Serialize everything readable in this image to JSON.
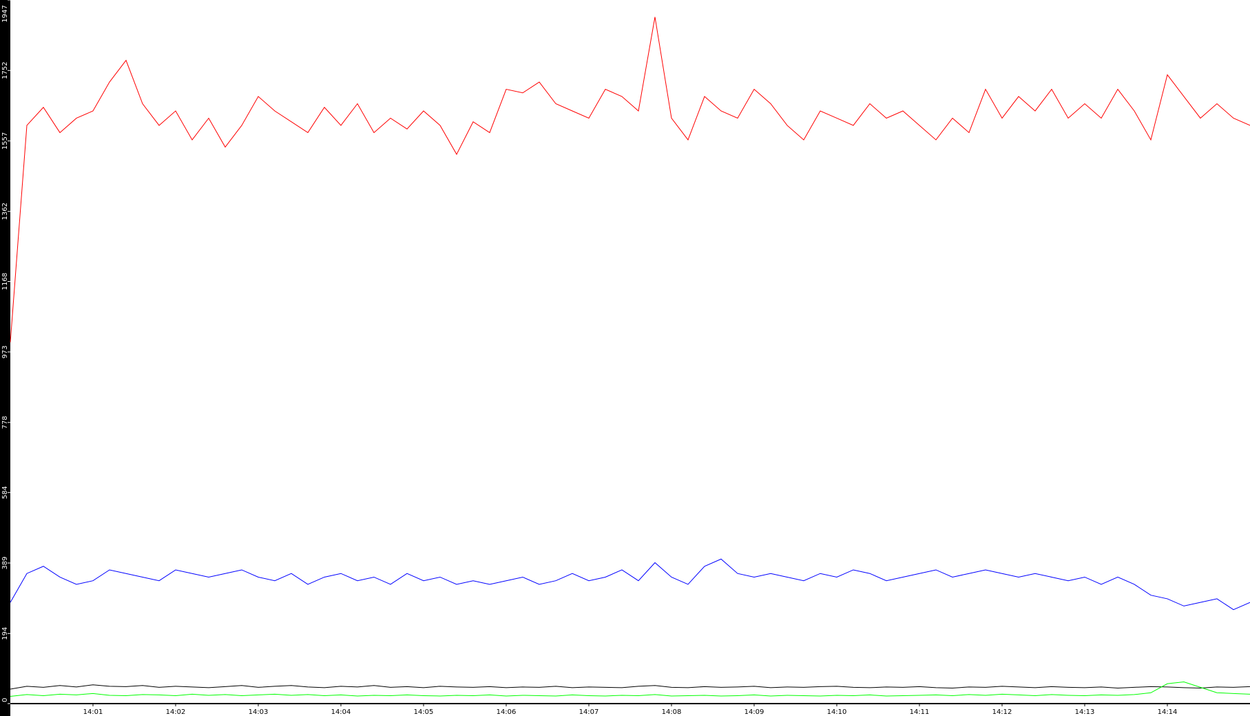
{
  "chart_data": {
    "type": "line",
    "x": [
      0,
      0.2,
      0.4,
      0.6,
      0.8,
      1,
      1.2,
      1.4,
      1.6,
      1.8,
      2,
      2.2,
      2.4,
      2.6,
      2.8,
      3,
      3.2,
      3.4,
      3.6,
      3.8,
      4,
      4.2,
      4.4,
      4.6,
      4.8,
      5,
      5.2,
      5.4,
      5.6,
      5.8,
      6,
      6.2,
      6.4,
      6.6,
      6.8,
      7,
      7.2,
      7.4,
      7.6,
      7.8,
      8,
      8.2,
      8.4,
      8.6,
      8.8,
      9,
      9.2,
      9.4,
      9.6,
      9.8,
      10,
      10.2,
      10.4,
      10.6,
      10.8,
      11,
      11.2,
      11.4,
      11.6,
      11.8,
      12,
      12.2,
      12.4,
      12.6,
      12.8,
      13,
      13.2,
      13.4,
      13.6,
      13.8,
      14,
      14.2,
      14.4,
      14.6,
      14.8,
      15
    ],
    "series": [
      {
        "color": "#ff0000",
        "values": [
          1000,
          1600,
          1650,
          1580,
          1620,
          1640,
          1720,
          1780,
          1660,
          1600,
          1640,
          1560,
          1620,
          1540,
          1600,
          1680,
          1640,
          1610,
          1580,
          1650,
          1600,
          1660,
          1580,
          1620,
          1590,
          1640,
          1600,
          1520,
          1610,
          1580,
          1700,
          1690,
          1720,
          1660,
          1640,
          1620,
          1700,
          1680,
          1640,
          1900,
          1620,
          1560,
          1680,
          1640,
          1620,
          1700,
          1660,
          1600,
          1560,
          1640,
          1620,
          1600,
          1660,
          1620,
          1640,
          1600,
          1560,
          1620,
          1580,
          1700,
          1620,
          1680,
          1640,
          1700,
          1620,
          1660,
          1620,
          1700,
          1640,
          1560,
          1740,
          1680,
          1620,
          1660,
          1620,
          1600
        ]
      },
      {
        "color": "#0000ff",
        "values": [
          280,
          360,
          380,
          350,
          330,
          340,
          370,
          360,
          350,
          340,
          370,
          360,
          350,
          360,
          370,
          350,
          340,
          360,
          330,
          350,
          360,
          340,
          350,
          330,
          360,
          340,
          350,
          330,
          340,
          330,
          340,
          350,
          330,
          340,
          360,
          340,
          350,
          370,
          340,
          390,
          350,
          330,
          380,
          400,
          360,
          350,
          360,
          350,
          340,
          360,
          350,
          370,
          360,
          340,
          350,
          360,
          370,
          350,
          360,
          370,
          360,
          350,
          360,
          350,
          340,
          350,
          330,
          350,
          330,
          300,
          290,
          270,
          280,
          290,
          260,
          280
        ]
      },
      {
        "color": "#000000",
        "values": [
          40,
          48,
          45,
          50,
          46,
          52,
          48,
          47,
          50,
          45,
          48,
          46,
          44,
          47,
          50,
          45,
          48,
          50,
          46,
          44,
          48,
          46,
          50,
          45,
          47,
          44,
          48,
          46,
          45,
          47,
          44,
          46,
          45,
          48,
          44,
          46,
          45,
          44,
          48,
          50,
          45,
          44,
          47,
          45,
          46,
          48,
          44,
          46,
          45,
          47,
          48,
          45,
          44,
          46,
          45,
          47,
          44,
          43,
          46,
          45,
          48,
          46,
          44,
          47,
          45,
          44,
          46,
          43,
          45,
          47,
          46,
          44,
          43,
          46,
          45,
          47
        ]
      },
      {
        "color": "#00ff00",
        "values": [
          20,
          25,
          22,
          26,
          24,
          28,
          23,
          22,
          25,
          24,
          22,
          26,
          23,
          25,
          22,
          24,
          26,
          23,
          25,
          22,
          24,
          21,
          23,
          22,
          24,
          22,
          21,
          23,
          22,
          24,
          21,
          23,
          22,
          21,
          24,
          22,
          21,
          23,
          22,
          25,
          21,
          22,
          23,
          21,
          22,
          24,
          21,
          23,
          22,
          21,
          23,
          22,
          24,
          21,
          22,
          23,
          24,
          22,
          25,
          23,
          26,
          24,
          22,
          25,
          23,
          22,
          24,
          23,
          25,
          30,
          55,
          60,
          45,
          30,
          28,
          26
        ]
      }
    ],
    "xlim": [
      0,
      15
    ],
    "xticks": [
      {
        "value": 1,
        "label": "14:01"
      },
      {
        "value": 2,
        "label": "14:02"
      },
      {
        "value": 3,
        "label": "14:03"
      },
      {
        "value": 4,
        "label": "14:04"
      },
      {
        "value": 5,
        "label": "14:05"
      },
      {
        "value": 6,
        "label": "14:06"
      },
      {
        "value": 7,
        "label": "14:07"
      },
      {
        "value": 8,
        "label": "14:08"
      },
      {
        "value": 9,
        "label": "14:09"
      },
      {
        "value": 10,
        "label": "14:10"
      },
      {
        "value": 11,
        "label": "14:11"
      },
      {
        "value": 12,
        "label": "14:12"
      },
      {
        "value": 13,
        "label": "14:13"
      },
      {
        "value": 14,
        "label": "14:14"
      }
    ],
    "ylim": [
      0,
      1947
    ],
    "yticks": [
      0,
      194,
      389,
      584,
      778,
      973,
      1168,
      1362,
      1557,
      1752,
      1947
    ]
  }
}
